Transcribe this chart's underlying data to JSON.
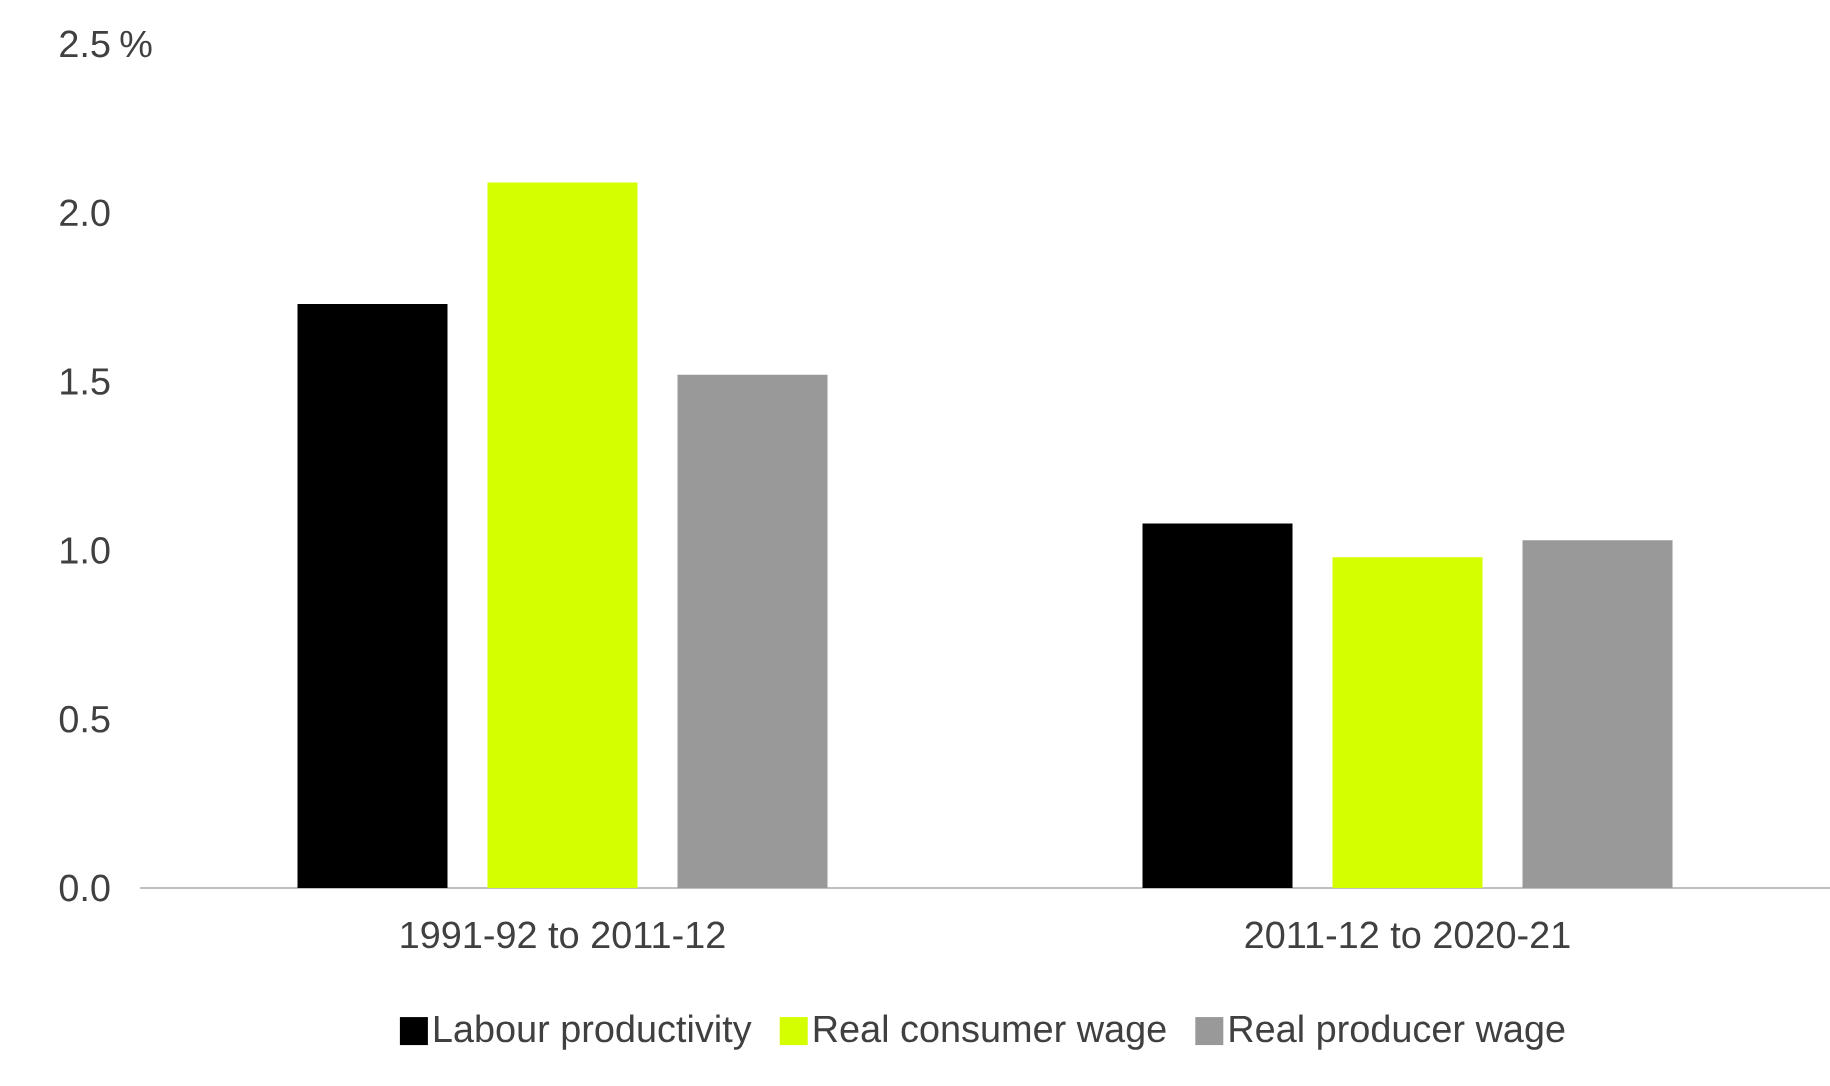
{
  "chart_data": {
    "type": "bar",
    "ylabel": "%",
    "categories": [
      "1991-92 to 2011-12",
      "2011-12 to 2020-21"
    ],
    "series": [
      {
        "name": "Labour productivity",
        "color": "#000000",
        "values": [
          1.73,
          1.08
        ]
      },
      {
        "name": "Real consumer wage",
        "color": "#d4ff00",
        "values": [
          2.09,
          0.98
        ]
      },
      {
        "name": "Real producer wage",
        "color": "#999999",
        "values": [
          1.52,
          1.03
        ]
      }
    ],
    "ylim": [
      0,
      2.5
    ],
    "yticks": [
      {
        "value": 0,
        "label": "0.0"
      },
      {
        "value": 0.5,
        "label": "0.5"
      },
      {
        "value": 1,
        "label": "1.0"
      },
      {
        "value": 1.5,
        "label": "1.5"
      },
      {
        "value": 2,
        "label": "2.0"
      },
      2.5
    ],
    "grid": false,
    "legend": "bottom"
  }
}
